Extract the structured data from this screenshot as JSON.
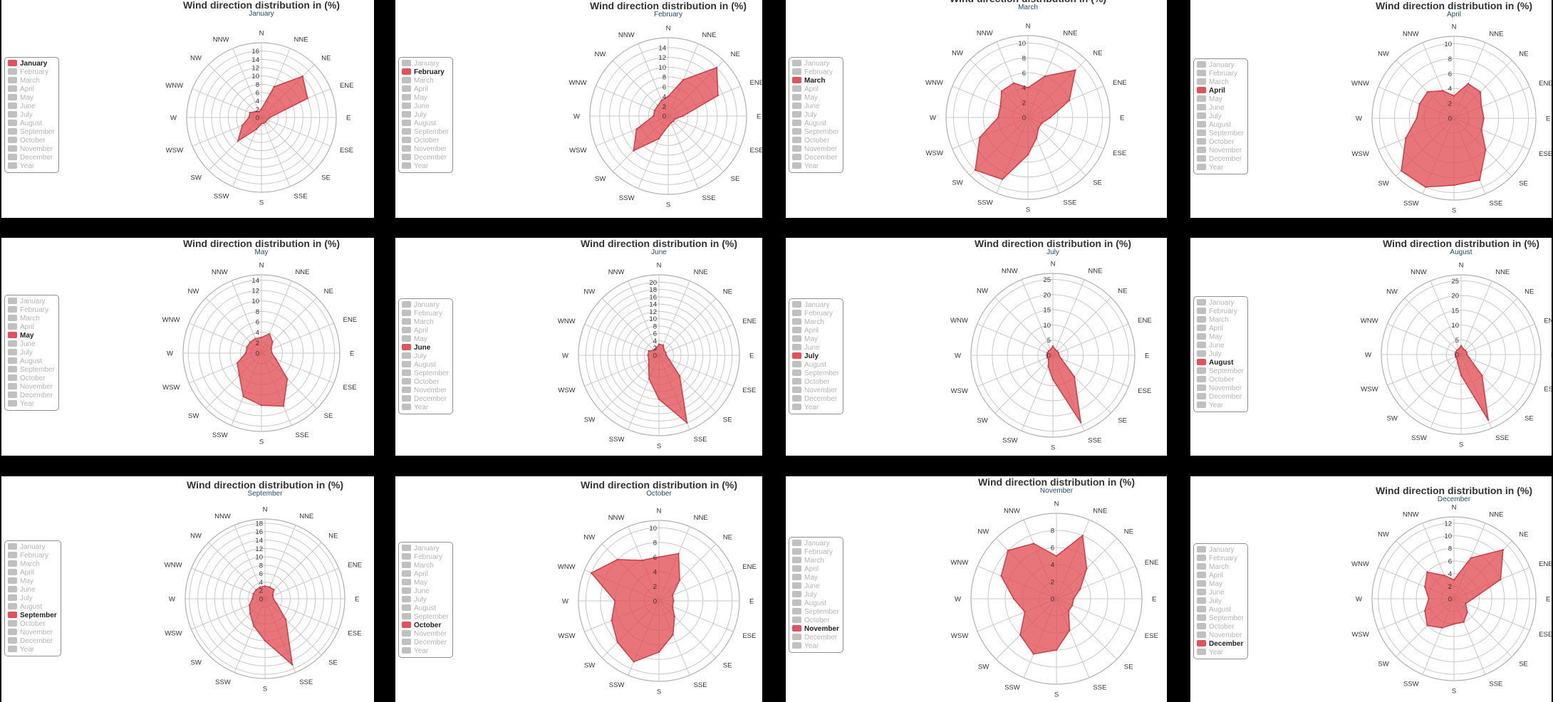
{
  "colors": {
    "series_fill": "#e2555b",
    "series_stroke": "#cf3c44",
    "legend_inactive": "#c0c0c0",
    "legend_active": "#e0535b"
  },
  "legend_labels": [
    "January",
    "February",
    "March",
    "April",
    "May",
    "June",
    "July",
    "August",
    "September",
    "October",
    "November",
    "December",
    "Year"
  ],
  "chart_data": [
    {
      "type": "polar-area",
      "title": "Wind direction distribution in (%)",
      "subtitle": "January",
      "directions": [
        "N",
        "NNE",
        "NE",
        "ENE",
        "E",
        "ESE",
        "SE",
        "SSE",
        "S",
        "SSW",
        "SW",
        "WSW",
        "W",
        "WNW",
        "NW",
        "NNW"
      ],
      "ticks": [
        0,
        2,
        4,
        6,
        8,
        10,
        12,
        14,
        16
      ],
      "rmax": 18,
      "series": [
        {
          "name": "January",
          "values": [
            2,
            8,
            14,
            12,
            2,
            1.5,
            1.5,
            1.5,
            1.5,
            3,
            8,
            5,
            3,
            3,
            2,
            1.5
          ]
        }
      ],
      "legend_active": "January",
      "legend_position": "left"
    },
    {
      "type": "polar-area",
      "title": "Wind direction distribution in (%)",
      "subtitle": "February",
      "directions": [
        "N",
        "NNE",
        "NE",
        "ENE",
        "E",
        "ESE",
        "SE",
        "SSE",
        "S",
        "SSW",
        "SW",
        "WSW",
        "W",
        "WNW",
        "NW",
        "NNW"
      ],
      "ticks": [
        0,
        2,
        4,
        6,
        8,
        10,
        12,
        14
      ],
      "rmax": 16,
      "series": [
        {
          "name": "February",
          "values": [
            4,
            8,
            14,
            11,
            3,
            1.5,
            1.5,
            1.5,
            2,
            5,
            10,
            7,
            3,
            3,
            3,
            3.5
          ]
        }
      ],
      "legend_active": "February",
      "legend_position": "left"
    },
    {
      "type": "polar-area",
      "title": "Wind direction distribution in (%)",
      "subtitle": "March",
      "directions": [
        "N",
        "NNE",
        "NE",
        "ENE",
        "E",
        "ESE",
        "SE",
        "SSE",
        "S",
        "SSW",
        "SW",
        "WSW",
        "W",
        "WNW",
        "NW",
        "NNW"
      ],
      "ticks": [
        0,
        2,
        4,
        6,
        8,
        10
      ],
      "rmax": 11,
      "series": [
        {
          "name": "March",
          "values": [
            4,
            6,
            9,
            6,
            3,
            2,
            2,
            3,
            5,
            9,
            10,
            7,
            4,
            4,
            5,
            5
          ]
        }
      ],
      "legend_active": "March",
      "legend_position": "left"
    },
    {
      "type": "polar-area",
      "title": "Wind direction distribution in (%)",
      "subtitle": "April",
      "directions": [
        "N",
        "NNE",
        "NE",
        "ENE",
        "E",
        "ESE",
        "SE",
        "SSE",
        "S",
        "SSW",
        "SW",
        "WSW",
        "W",
        "WNW",
        "NW",
        "NNW"
      ],
      "ticks": [
        0,
        2,
        4,
        6,
        8,
        10
      ],
      "rmax": 11,
      "series": [
        {
          "name": "April",
          "values": [
            3,
            5,
            5,
            4,
            4,
            4,
            6,
            9,
            9,
            10,
            10,
            7,
            5,
            5,
            5,
            4
          ]
        }
      ],
      "legend_active": "April",
      "legend_position": "left"
    },
    {
      "type": "polar-area",
      "title": "Wind direction distribution in (%)",
      "subtitle": "May",
      "directions": [
        "N",
        "NNE",
        "NE",
        "ENE",
        "E",
        "ESE",
        "SE",
        "SSE",
        "S",
        "SSW",
        "SW",
        "WSW",
        "W",
        "WNW",
        "NW",
        "NNW"
      ],
      "ticks": [
        0,
        2,
        4,
        6,
        8,
        10,
        12,
        14
      ],
      "rmax": 15,
      "series": [
        {
          "name": "May",
          "values": [
            3,
            4,
            3,
            2,
            2,
            3,
            7,
            11,
            10,
            9,
            6,
            5,
            3,
            3,
            3,
            3
          ]
        }
      ],
      "legend_active": "May",
      "legend_position": "left"
    },
    {
      "type": "polar-area",
      "title": "Wind direction distribution in (%)",
      "subtitle": "June",
      "directions": [
        "N",
        "NNE",
        "NE",
        "ENE",
        "E",
        "ESE",
        "SE",
        "SSE",
        "S",
        "SSW",
        "SW",
        "WSW",
        "W",
        "WNW",
        "NW",
        "NNW"
      ],
      "ticks": [
        0,
        2,
        4,
        6,
        8,
        10,
        12,
        14,
        16,
        18,
        20
      ],
      "rmax": 22,
      "series": [
        {
          "name": "June",
          "values": [
            3,
            3,
            2,
            2,
            2,
            3,
            8,
            20,
            12,
            7,
            4,
            3,
            3,
            3,
            2,
            2
          ]
        }
      ],
      "legend_active": "June",
      "legend_position": "left"
    },
    {
      "type": "polar-area",
      "title": "Wind direction distribution in (%)",
      "subtitle": "July",
      "directions": [
        "N",
        "NNE",
        "NE",
        "ENE",
        "E",
        "ESE",
        "SE",
        "SSE",
        "S",
        "SSW",
        "SW",
        "WSW",
        "W",
        "WNW",
        "NW",
        "NNW"
      ],
      "ticks": [
        0,
        5,
        10,
        15,
        20,
        25
      ],
      "rmax": 27,
      "series": [
        {
          "name": "July",
          "values": [
            3,
            2,
            2,
            2,
            2,
            3,
            10,
            24,
            8,
            4,
            2,
            2,
            2,
            2,
            2,
            2
          ]
        }
      ],
      "legend_active": "July",
      "legend_position": "left"
    },
    {
      "type": "polar-area",
      "title": "Wind direction distribution in (%)",
      "subtitle": "August",
      "directions": [
        "N",
        "NNE",
        "NE",
        "ENE",
        "E",
        "ESE",
        "SE",
        "SSE",
        "S",
        "SSW",
        "SW",
        "WSW",
        "W",
        "WNW",
        "NW",
        "NNW"
      ],
      "ticks": [
        0,
        5,
        10,
        15,
        20,
        25
      ],
      "rmax": 27,
      "series": [
        {
          "name": "August",
          "values": [
            3,
            2,
            2,
            2,
            2,
            3,
            10,
            24,
            7,
            3,
            2,
            2,
            2,
            2,
            2,
            2
          ]
        }
      ],
      "legend_active": "August",
      "legend_position": "left"
    },
    {
      "type": "polar-area",
      "title": "Wind direction distribution in (%)",
      "subtitle": "September",
      "directions": [
        "N",
        "NNE",
        "NE",
        "ENE",
        "E",
        "ESE",
        "SE",
        "SSE",
        "S",
        "SSW",
        "SW",
        "WSW",
        "W",
        "WNW",
        "NW",
        "NNW"
      ],
      "ticks": [
        0,
        2,
        4,
        6,
        8,
        10,
        12,
        14,
        16,
        18
      ],
      "rmax": 19,
      "series": [
        {
          "name": "September",
          "values": [
            3,
            3,
            3,
            2,
            2,
            3,
            7,
            17,
            10,
            7,
            5,
            4,
            3,
            3,
            3,
            3
          ]
        }
      ],
      "legend_active": "September",
      "legend_position": "left"
    },
    {
      "type": "polar-area",
      "title": "Wind direction distribution in (%)",
      "subtitle": "October",
      "directions": [
        "N",
        "NNE",
        "NE",
        "ENE",
        "E",
        "ESE",
        "SE",
        "SSE",
        "S",
        "SSW",
        "SW",
        "WSW",
        "W",
        "WNW",
        "NW",
        "NNW"
      ],
      "ticks": [
        0,
        2,
        4,
        6,
        8,
        10
      ],
      "rmax": 11,
      "series": [
        {
          "name": "October",
          "values": [
            6,
            7,
            4,
            2,
            2,
            2,
            3,
            5,
            7,
            9,
            8,
            7,
            6,
            10,
            8,
            6
          ]
        }
      ],
      "legend_active": "October",
      "legend_position": "left"
    },
    {
      "type": "polar-area",
      "title": "Wind direction distribution in (%)",
      "subtitle": "November",
      "directions": [
        "N",
        "NNE",
        "NE",
        "ENE",
        "E",
        "ESE",
        "SE",
        "SSE",
        "S",
        "SSW",
        "SW",
        "WSW",
        "W",
        "WNW",
        "NW",
        "NNW"
      ],
      "ticks": [
        0,
        2,
        4,
        6,
        8
      ],
      "rmax": 10,
      "series": [
        {
          "name": "November",
          "values": [
            5,
            8,
            5,
            3,
            2,
            2,
            2,
            4,
            6,
            7,
            6,
            4,
            5,
            7,
            8,
            7
          ]
        }
      ],
      "legend_active": "November",
      "legend_position": "left"
    },
    {
      "type": "polar-area",
      "title": "Wind direction distribution in (%)",
      "subtitle": "December",
      "directions": [
        "N",
        "NNE",
        "NE",
        "ENE",
        "E",
        "ESE",
        "SE",
        "SSE",
        "S",
        "SSW",
        "SW",
        "WSW",
        "W",
        "WNW",
        "NW",
        "NNW"
      ],
      "ticks": [
        0,
        2,
        4,
        6,
        8,
        10,
        12
      ],
      "rmax": 13,
      "series": [
        {
          "name": "December",
          "values": [
            3,
            7,
            11,
            8,
            3,
            2,
            3,
            4,
            4,
            5,
            6,
            5,
            4,
            5,
            6,
            4
          ]
        }
      ],
      "legend_active": "December",
      "legend_position": "left"
    }
  ]
}
